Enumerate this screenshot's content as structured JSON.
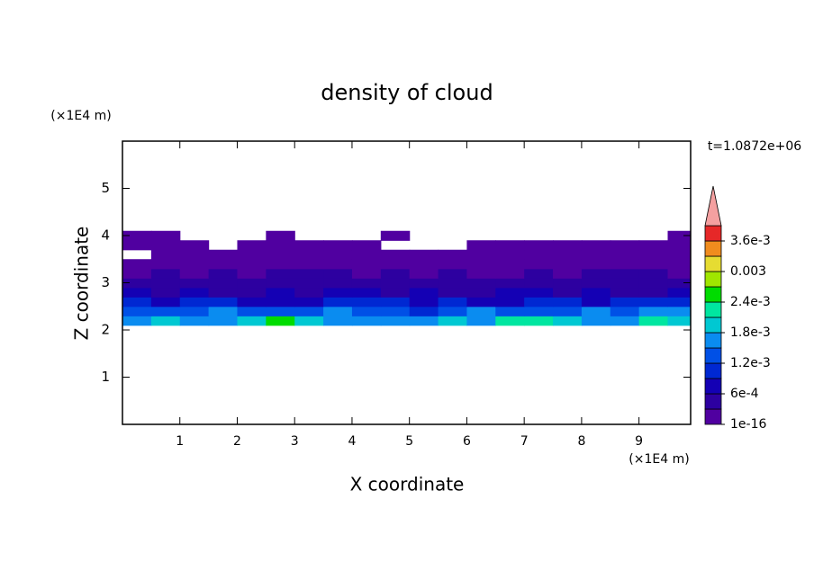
{
  "chart_data": {
    "type": "contour",
    "title": "density of cloud",
    "xlabel": "X coordinate",
    "ylabel": "Z coordinate",
    "xunit": "(×1E4 m)",
    "yunit": "(×1E4 m)",
    "time_label": "t=1.0872e+06",
    "xlim": [
      0,
      9.9
    ],
    "ylim": [
      0,
      6
    ],
    "xticks": [
      1,
      2,
      3,
      4,
      5,
      6,
      7,
      8,
      9
    ],
    "yticks": [
      1,
      2,
      3,
      4,
      5
    ],
    "x": [
      0.25,
      0.75,
      1.25,
      1.75,
      2.25,
      2.75,
      3.25,
      3.75,
      4.25,
      4.75,
      5.25,
      5.75,
      6.25,
      6.75,
      7.25,
      7.75,
      8.25,
      8.75,
      9.25,
      9.75
    ],
    "y": [
      2.2,
      2.4,
      2.6,
      2.8,
      3.0,
      3.2,
      3.4,
      3.6,
      3.8,
      4.0
    ],
    "values": [
      [
        0.0016,
        0.0018,
        0.0017,
        0.0015,
        0.0019,
        0.0024,
        0.002,
        0.0016,
        0.0017,
        0.0015,
        0.0016,
        0.0018,
        0.0017,
        0.0021,
        0.0023,
        0.0018,
        0.0016,
        0.0017,
        0.0022,
        0.002
      ],
      [
        0.0014,
        0.0012,
        0.0013,
        0.0015,
        0.0013,
        0.0012,
        0.0014,
        0.0016,
        0.0013,
        0.0012,
        0.0011,
        0.0013,
        0.0015,
        0.0014,
        0.0012,
        0.0013,
        0.0015,
        0.0014,
        0.0016,
        0.0015
      ],
      [
        0.0009,
        0.0008,
        0.001,
        0.0009,
        0.0008,
        0.0007,
        0.0008,
        0.001,
        0.0011,
        0.0009,
        0.0008,
        0.0009,
        0.0008,
        0.0007,
        0.0009,
        0.001,
        0.0008,
        0.0009,
        0.001,
        0.0009
      ],
      [
        0.0006,
        0.0005,
        0.0007,
        0.0005,
        0.0004,
        0.0006,
        0.0005,
        0.0006,
        0.0007,
        0.0005,
        0.0006,
        0.0005,
        0.0004,
        0.0006,
        0.0007,
        0.0005,
        0.0006,
        0.0005,
        0.0004,
        0.0006
      ],
      [
        0.0004,
        0.0003,
        0.0004,
        0.0005,
        0.0003,
        0.0004,
        0.0003,
        0.0004,
        0.0005,
        0.0004,
        0.0003,
        0.0004,
        0.0005,
        0.0004,
        0.0003,
        0.0004,
        0.0003,
        0.0004,
        0.0005,
        0.0004
      ],
      [
        0.0002,
        0.0003,
        0.0002,
        0.0003,
        0.0002,
        0.0003,
        0.0004,
        0.0003,
        0.0002,
        0.0003,
        0.0002,
        0.0003,
        0.0002,
        0.0002,
        0.0003,
        0.0002,
        0.0003,
        0.0004,
        0.0003,
        0.0002
      ],
      [
        0.0002,
        0.0001,
        0.0002,
        0.0001,
        0.0002,
        0.0001,
        0.0002,
        0.0001,
        0.0002,
        0.0001,
        0.0001,
        0.0002,
        0.0001,
        0.0002,
        0.0001,
        0.0002,
        0.0001,
        0.0002,
        0.0001,
        0.0002
      ],
      [
        null,
        0.0001,
        0.0001,
        0.0001,
        0.0001,
        0.0001,
        0.0001,
        0.0001,
        0.0001,
        0.0001,
        0.0001,
        0.0001,
        0.0001,
        0.0001,
        0.0001,
        0.0001,
        0.0001,
        0.0001,
        0.0001,
        0.0001
      ],
      [
        0.0001,
        0.0001,
        0.0001,
        null,
        0.0001,
        0.0001,
        0.0001,
        0.0001,
        0.0001,
        null,
        null,
        null,
        0.0001,
        0.0001,
        0.0001,
        0.0001,
        0.0001,
        0.0001,
        0.0001,
        0.0001
      ],
      [
        0.0001,
        0.0001,
        null,
        null,
        null,
        0.0001,
        null,
        null,
        null,
        0.0001,
        null,
        null,
        null,
        null,
        null,
        null,
        null,
        null,
        null,
        0.0001
      ]
    ],
    "colorbar": {
      "levels": [
        1e-16,
        0.0003,
        0.0006,
        0.0009,
        0.0012,
        0.0015,
        0.0018,
        0.0021,
        0.0024,
        0.0027,
        0.003,
        0.0033,
        0.0036,
        0.0039
      ],
      "colors": [
        "#5000a0",
        "#2d00a0",
        "#1400b4",
        "#0028d2",
        "#0050e6",
        "#0a8cf0",
        "#00c8d2",
        "#00e6a0",
        "#00dc00",
        "#a0e600",
        "#e6dc32",
        "#f08c1e",
        "#e62828"
      ],
      "extend_color": "#f4a0a0",
      "ticks": [
        {
          "value": 1e-16,
          "label": "1e-16"
        },
        {
          "value": 0.0006,
          "label": "6e-4"
        },
        {
          "value": 0.0012,
          "label": "1.2e-3"
        },
        {
          "value": 0.0018,
          "label": "1.8e-3"
        },
        {
          "value": 0.0024,
          "label": "2.4e-3"
        },
        0.003,
        {
          "value": 0.0036,
          "label": "3.6e-3"
        }
      ]
    }
  }
}
